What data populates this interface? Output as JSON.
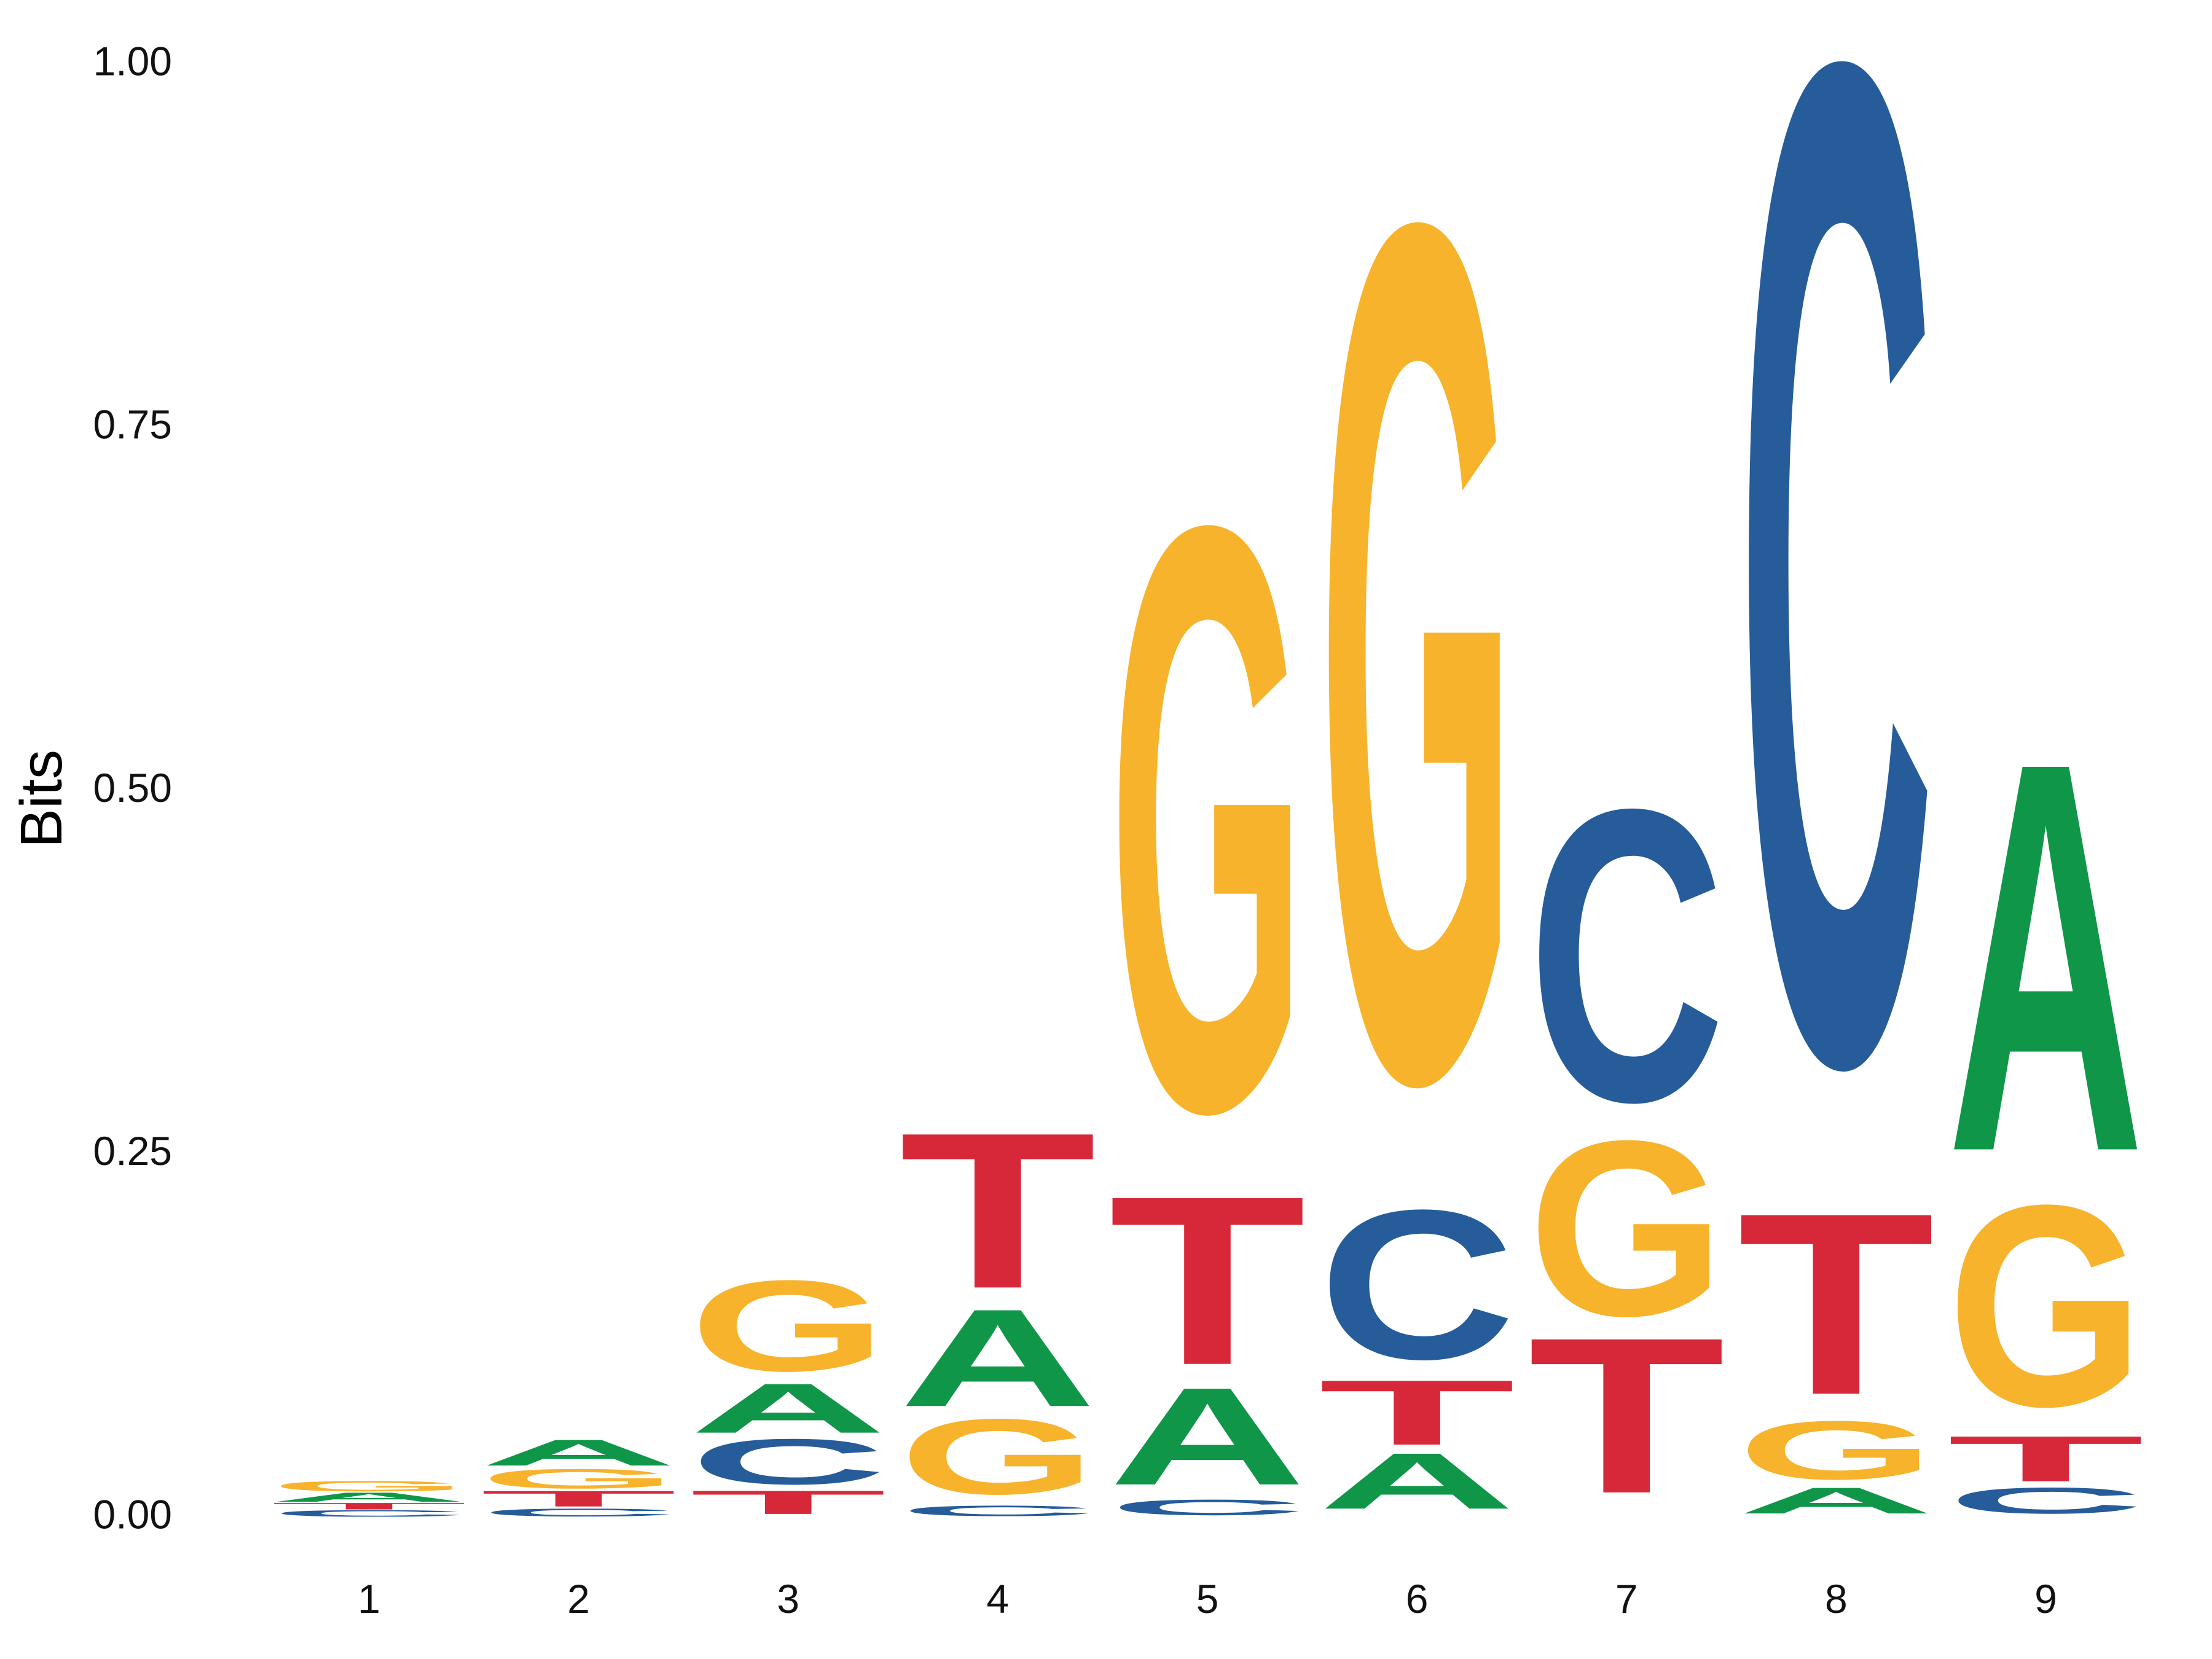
{
  "chart_data": {
    "type": "sequence-logo",
    "ylabel": "Bits",
    "ylim": [
      0,
      1
    ],
    "yticks": [
      "0.00",
      "0.25",
      "0.50",
      "0.75",
      "1.00"
    ],
    "ytick_values": [
      0,
      0.25,
      0.5,
      0.75,
      1.0
    ],
    "positions": [
      "1",
      "2",
      "3",
      "4",
      "5",
      "6",
      "7",
      "8",
      "9"
    ],
    "colors": {
      "A": "#109648",
      "C": "#255C99",
      "G": "#F7B32B",
      "T": "#D62839"
    },
    "stacks": [
      [
        {
          "letter": "C",
          "bits": 0.005
        },
        {
          "letter": "T",
          "bits": 0.005
        },
        {
          "letter": "A",
          "bits": 0.007
        },
        {
          "letter": "G",
          "bits": 0.008
        }
      ],
      [
        {
          "letter": "C",
          "bits": 0.006
        },
        {
          "letter": "T",
          "bits": 0.012
        },
        {
          "letter": "G",
          "bits": 0.015
        },
        {
          "letter": "A",
          "bits": 0.02
        }
      ],
      [
        {
          "letter": "T",
          "bits": 0.018
        },
        {
          "letter": "C",
          "bits": 0.035
        },
        {
          "letter": "A",
          "bits": 0.038
        },
        {
          "letter": "G",
          "bits": 0.07
        }
      ],
      [
        {
          "letter": "C",
          "bits": 0.008
        },
        {
          "letter": "G",
          "bits": 0.058
        },
        {
          "letter": "A",
          "bits": 0.075
        },
        {
          "letter": "T",
          "bits": 0.12
        }
      ],
      [
        {
          "letter": "C",
          "bits": 0.012
        },
        {
          "letter": "A",
          "bits": 0.075
        },
        {
          "letter": "T",
          "bits": 0.13
        },
        {
          "letter": "G",
          "bits": 0.45
        }
      ],
      [
        {
          "letter": "A",
          "bits": 0.043
        },
        {
          "letter": "T",
          "bits": 0.05
        },
        {
          "letter": "C",
          "bits": 0.115
        },
        {
          "letter": "G",
          "bits": 0.66
        }
      ],
      [
        {
          "letter": "T",
          "bits": 0.12
        },
        {
          "letter": "G",
          "bits": 0.135
        },
        {
          "letter": "C",
          "bits": 0.225
        }
      ],
      [
        {
          "letter": "A",
          "bits": 0.02
        },
        {
          "letter": "G",
          "bits": 0.045
        },
        {
          "letter": "T",
          "bits": 0.14
        },
        {
          "letter": "C",
          "bits": 0.77
        }
      ],
      [
        {
          "letter": "C",
          "bits": 0.02
        },
        {
          "letter": "T",
          "bits": 0.035
        },
        {
          "letter": "G",
          "bits": 0.155
        },
        {
          "letter": "A",
          "bits": 0.3
        }
      ]
    ]
  }
}
